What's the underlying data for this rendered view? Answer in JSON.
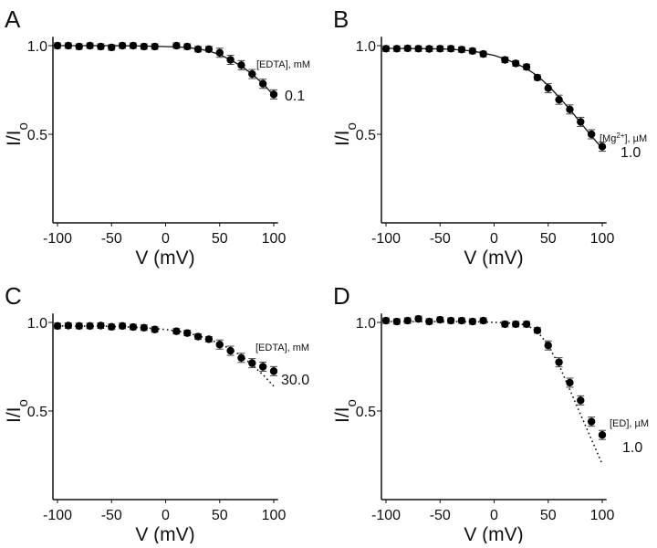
{
  "chart_data": [
    {
      "type": "scatter",
      "panel": "A",
      "xlabel": "V (mV)",
      "ylabel": "I/I",
      "ylabel_sub": "o",
      "xlim": [
        -104,
        104
      ],
      "ylim": [
        0,
        1.05
      ],
      "xticks": [
        -100,
        -50,
        0,
        50,
        100
      ],
      "yticks": [
        "1.0",
        "0.5"
      ],
      "ytick_values": [
        1.0,
        0.5
      ],
      "grid": false,
      "annotation": {
        "label_parts": [
          "[EDTA], mM"
        ],
        "value": "0.1"
      },
      "fit_style": "solid",
      "x": [
        -100,
        -90,
        -80,
        -70,
        -60,
        -50,
        -40,
        -30,
        -20,
        -10,
        10,
        20,
        30,
        40,
        50,
        60,
        70,
        80,
        90,
        100
      ],
      "y": [
        1.0,
        1.0,
        0.995,
        1.0,
        0.995,
        0.99,
        1.0,
        1.0,
        0.995,
        0.995,
        1.0,
        0.995,
        0.98,
        0.98,
        0.96,
        0.92,
        0.89,
        0.84,
        0.785,
        0.725
      ],
      "fit": {
        "x": [
          -100,
          -50,
          -20,
          0,
          10,
          20,
          30,
          40,
          50,
          60,
          70,
          80,
          90,
          100
        ],
        "y": [
          1.0,
          1.0,
          0.998,
          0.995,
          0.993,
          0.99,
          0.982,
          0.97,
          0.95,
          0.92,
          0.885,
          0.84,
          0.785,
          0.72
        ]
      }
    },
    {
      "type": "scatter",
      "panel": "B",
      "xlabel": "V (mV)",
      "ylabel": "I/I",
      "ylabel_sub": "o",
      "xlim": [
        -104,
        104
      ],
      "ylim": [
        0,
        1.05
      ],
      "xticks": [
        -100,
        -50,
        0,
        50,
        100
      ],
      "yticks": [
        "1.0",
        "0.5"
      ],
      "ytick_values": [
        1.0,
        0.5
      ],
      "grid": false,
      "annotation": {
        "label_parts": [
          "[Mg",
          "2+",
          "], µM"
        ],
        "value": "1.0"
      },
      "fit_style": "solid",
      "x": [
        -100,
        -90,
        -80,
        -70,
        -60,
        -50,
        -40,
        -30,
        -20,
        -10,
        10,
        20,
        30,
        40,
        50,
        60,
        70,
        80,
        90,
        100
      ],
      "y": [
        0.983,
        0.983,
        0.985,
        0.983,
        0.982,
        0.983,
        0.983,
        0.978,
        0.97,
        0.953,
        0.92,
        0.9,
        0.88,
        0.82,
        0.76,
        0.695,
        0.64,
        0.57,
        0.5,
        0.43
      ],
      "fit": {
        "x": [
          -100,
          -60,
          -40,
          -20,
          0,
          10,
          20,
          30,
          40,
          50,
          60,
          70,
          80,
          90,
          100
        ],
        "y": [
          0.985,
          0.983,
          0.98,
          0.97,
          0.945,
          0.925,
          0.9,
          0.87,
          0.83,
          0.775,
          0.71,
          0.64,
          0.565,
          0.49,
          0.42
        ]
      }
    },
    {
      "type": "scatter",
      "panel": "C",
      "xlabel": "V (mV)",
      "ylabel": "I/I",
      "ylabel_sub": "o",
      "xlim": [
        -104,
        104
      ],
      "ylim": [
        0,
        1.05
      ],
      "xticks": [
        -100,
        -50,
        0,
        50,
        100
      ],
      "yticks": [
        "1.0",
        "0.5"
      ],
      "ytick_values": [
        1.0,
        0.5
      ],
      "grid": false,
      "annotation": {
        "label_parts": [
          "[EDTA], mM"
        ],
        "value": "30.0"
      },
      "fit_style": "dotted",
      "x": [
        -100,
        -90,
        -80,
        -70,
        -60,
        -50,
        -40,
        -30,
        -20,
        -10,
        10,
        20,
        30,
        40,
        50,
        60,
        70,
        80,
        90,
        100
      ],
      "y": [
        0.98,
        0.982,
        0.98,
        0.98,
        0.982,
        0.975,
        0.98,
        0.974,
        0.97,
        0.96,
        0.95,
        0.94,
        0.92,
        0.905,
        0.875,
        0.84,
        0.8,
        0.77,
        0.75,
        0.725
      ],
      "fit": {
        "x": [
          -100,
          -50,
          -20,
          0,
          10,
          20,
          30,
          40,
          50,
          60,
          70,
          80,
          90,
          100
        ],
        "y": [
          0.98,
          0.978,
          0.97,
          0.96,
          0.952,
          0.94,
          0.925,
          0.905,
          0.88,
          0.85,
          0.81,
          0.76,
          0.705,
          0.64
        ]
      }
    },
    {
      "type": "scatter",
      "panel": "D",
      "xlabel": "V (mV)",
      "ylabel": "I/I",
      "ylabel_sub": "o",
      "xlim": [
        -104,
        104
      ],
      "ylim": [
        0,
        1.05
      ],
      "xticks": [
        -100,
        -50,
        0,
        50,
        100
      ],
      "yticks": [
        "1.0",
        "0.5"
      ],
      "ytick_values": [
        1.0,
        0.5
      ],
      "grid": false,
      "annotation": {
        "label_parts": [
          "[ED], µM"
        ],
        "value": "1.0"
      },
      "fit_style": "dotted",
      "x": [
        -100,
        -90,
        -80,
        -70,
        -60,
        -50,
        -40,
        -30,
        -20,
        -10,
        10,
        20,
        30,
        40,
        50,
        60,
        70,
        80,
        90,
        100
      ],
      "y": [
        1.01,
        1.005,
        1.01,
        1.02,
        1.005,
        1.015,
        1.01,
        1.01,
        1.005,
        1.01,
        0.99,
        0.99,
        0.99,
        0.955,
        0.87,
        0.775,
        0.66,
        0.56,
        0.44,
        0.365
      ],
      "fit": {
        "x": [
          -100,
          -50,
          -10,
          0,
          10,
          20,
          30,
          40,
          50,
          60,
          70,
          80,
          90,
          100
        ],
        "y": [
          1.005,
          1.005,
          1.003,
          1.0,
          0.998,
          0.995,
          0.985,
          0.95,
          0.87,
          0.76,
          0.62,
          0.48,
          0.34,
          0.2
        ]
      }
    }
  ]
}
